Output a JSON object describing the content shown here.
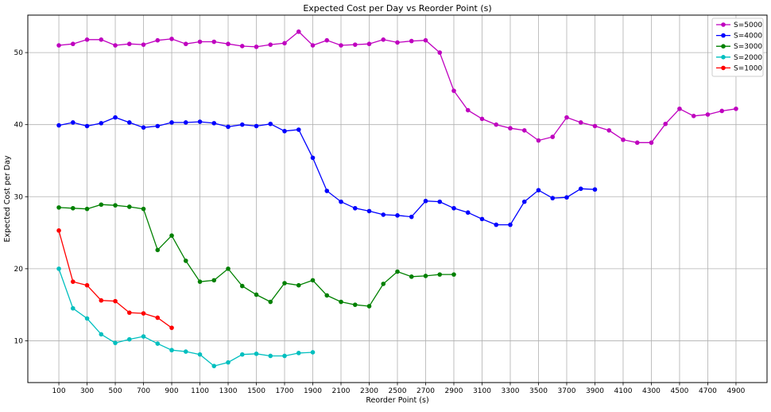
{
  "chart_data": {
    "type": "line",
    "title": "Expected Cost per Day vs Reorder Point (s)",
    "xlabel": "Reorder Point (s)",
    "ylabel": "Expected Cost per Day",
    "xlim": [
      -120,
      5120
    ],
    "ylim": [
      4.2,
      55.2
    ],
    "xticks": [
      100,
      300,
      500,
      700,
      900,
      1100,
      1300,
      1500,
      1700,
      1900,
      2100,
      2300,
      2500,
      2700,
      2900,
      3100,
      3300,
      3500,
      3700,
      3900,
      4100,
      4300,
      4500,
      4700,
      4900
    ],
    "yticks": [
      10,
      20,
      30,
      40,
      50
    ],
    "grid": true,
    "legend_position": "top-right",
    "series": [
      {
        "name": "S=5000",
        "color": "#bf00bf",
        "marker": "circle",
        "x": [
          100,
          200,
          300,
          400,
          500,
          600,
          700,
          800,
          900,
          1000,
          1100,
          1200,
          1300,
          1400,
          1500,
          1600,
          1700,
          1800,
          1900,
          2000,
          2100,
          2200,
          2300,
          2400,
          2500,
          2600,
          2700,
          2800,
          2900,
          3000,
          3100,
          3200,
          3300,
          3400,
          3500,
          3600,
          3700,
          3800,
          3900,
          4000,
          4100,
          4200,
          4300,
          4400,
          4500,
          4600,
          4700,
          4800,
          4900
        ],
        "values": [
          51.0,
          51.2,
          51.8,
          51.8,
          51.0,
          51.2,
          51.1,
          51.7,
          51.9,
          51.2,
          51.5,
          51.5,
          51.2,
          50.9,
          50.8,
          51.1,
          51.3,
          52.9,
          51.0,
          51.7,
          51.0,
          51.1,
          51.2,
          51.8,
          51.4,
          51.6,
          51.7,
          50.0,
          44.7,
          42.0,
          40.8,
          40.0,
          39.5,
          39.2,
          37.8,
          38.3,
          41.0,
          40.3,
          39.8,
          39.2,
          37.9,
          37.5,
          37.5,
          40.1,
          42.2,
          41.2,
          41.4,
          41.9,
          42.2
        ]
      },
      {
        "name": "S=4000",
        "color": "#0000ff",
        "marker": "circle",
        "x": [
          100,
          200,
          300,
          400,
          500,
          600,
          700,
          800,
          900,
          1000,
          1100,
          1200,
          1300,
          1400,
          1500,
          1600,
          1700,
          1800,
          1900,
          2000,
          2100,
          2200,
          2300,
          2400,
          2500,
          2600,
          2700,
          2800,
          2900,
          3000,
          3100,
          3200,
          3300,
          3400,
          3500,
          3600,
          3700,
          3800,
          3900
        ],
        "values": [
          39.9,
          40.3,
          39.8,
          40.2,
          41.0,
          40.3,
          39.6,
          39.8,
          40.3,
          40.3,
          40.4,
          40.2,
          39.7,
          40.0,
          39.8,
          40.1,
          39.1,
          39.3,
          35.4,
          30.8,
          29.3,
          28.4,
          28.0,
          27.5,
          27.4,
          27.2,
          29.4,
          29.3,
          28.4,
          27.8,
          26.9,
          26.1,
          26.1,
          29.3,
          30.9,
          29.8,
          29.9,
          31.1,
          31.0
        ]
      },
      {
        "name": "S=3000",
        "color": "#008000",
        "marker": "circle",
        "x": [
          100,
          200,
          300,
          400,
          500,
          600,
          700,
          800,
          900,
          1000,
          1100,
          1200,
          1300,
          1400,
          1500,
          1600,
          1700,
          1800,
          1900,
          2000,
          2100,
          2200,
          2300,
          2400,
          2500,
          2600,
          2700,
          2800,
          2900
        ],
        "values": [
          28.5,
          28.4,
          28.3,
          28.9,
          28.8,
          28.6,
          28.3,
          22.6,
          24.6,
          21.1,
          18.2,
          18.4,
          20.0,
          17.6,
          16.4,
          15.4,
          18.0,
          17.7,
          18.4,
          16.3,
          15.4,
          15.0,
          14.8,
          17.9,
          19.6,
          18.9,
          19.0,
          19.2,
          19.2
        ]
      },
      {
        "name": "S=2000",
        "color": "#00bfbf",
        "marker": "circle",
        "x": [
          100,
          200,
          300,
          400,
          500,
          600,
          700,
          800,
          900,
          1000,
          1100,
          1200,
          1300,
          1400,
          1500,
          1600,
          1700,
          1800,
          1900
        ],
        "values": [
          20.0,
          14.5,
          13.1,
          10.9,
          9.7,
          10.2,
          10.6,
          9.6,
          8.7,
          8.5,
          8.1,
          6.5,
          7.0,
          8.1,
          8.2,
          7.9,
          7.9,
          8.3,
          8.4
        ]
      },
      {
        "name": "S=1000",
        "color": "#ff0000",
        "marker": "circle",
        "x": [
          100,
          200,
          300,
          400,
          500,
          600,
          700,
          800,
          900
        ],
        "values": [
          25.3,
          18.2,
          17.7,
          15.6,
          15.5,
          13.9,
          13.8,
          13.2,
          11.8
        ]
      }
    ]
  }
}
